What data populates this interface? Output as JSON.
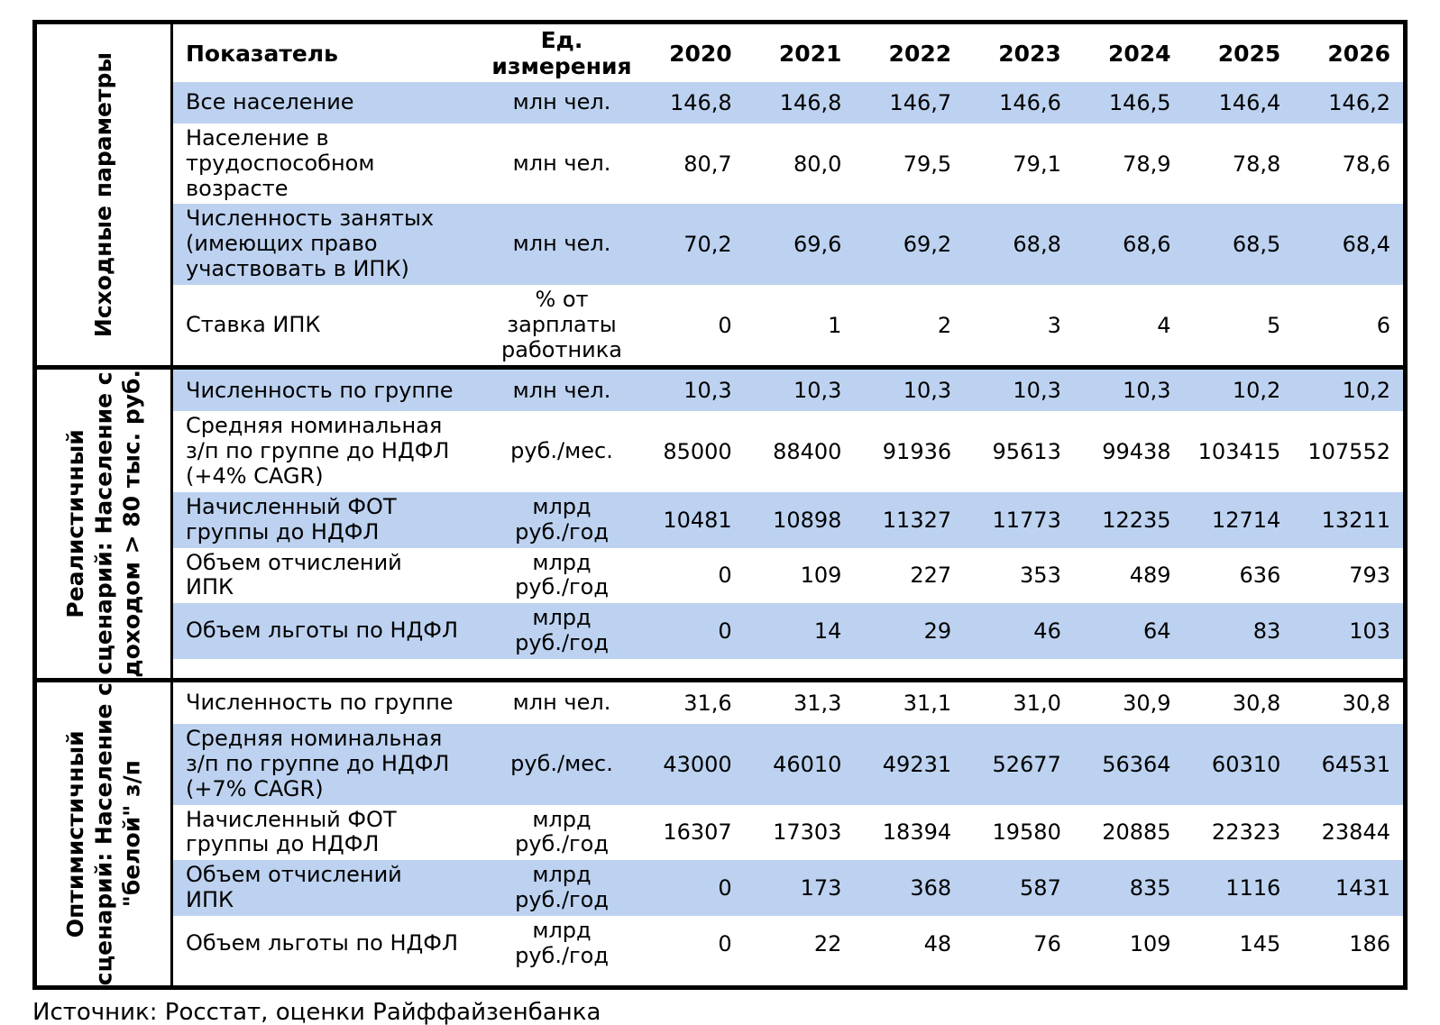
{
  "colors": {
    "row_highlight": "#bdd2f0",
    "border": "#000000",
    "background": "#ffffff"
  },
  "table": {
    "header": {
      "indicator_label": "Показатель",
      "unit_label_lines": [
        "Ед.",
        "измерения"
      ],
      "years": [
        "2020",
        "2021",
        "2022",
        "2023",
        "2024",
        "2025",
        "2026"
      ]
    },
    "sections": [
      {
        "label_lines": [
          "Исходные параметры"
        ],
        "rows": [
          {
            "name_lines": [
              "Все население"
            ],
            "unit_lines": [
              "млн чел."
            ],
            "values": [
              "146,8",
              "146,8",
              "146,7",
              "146,6",
              "146,5",
              "146,4",
              "146,2"
            ]
          },
          {
            "name_lines": [
              "Население в",
              "трудоспособном",
              "возрасте"
            ],
            "unit_lines": [
              "млн чел."
            ],
            "values": [
              "80,7",
              "80,0",
              "79,5",
              "79,1",
              "78,9",
              "78,8",
              "78,6"
            ]
          },
          {
            "name_lines": [
              "Численность занятых",
              "(имеющих право",
              "участвовать в ИПК)"
            ],
            "unit_lines": [
              "млн чел."
            ],
            "values": [
              "70,2",
              "69,6",
              "69,2",
              "68,8",
              "68,6",
              "68,5",
              "68,4"
            ]
          },
          {
            "name_lines": [
              "Ставка ИПК"
            ],
            "unit_lines": [
              "% от",
              "зарплаты",
              "работника"
            ],
            "values": [
              "0",
              "1",
              "2",
              "3",
              "4",
              "5",
              "6"
            ]
          }
        ]
      },
      {
        "label_lines": [
          "Реалистичный",
          "сценарий: Население с",
          "доходом > 80 тыс. руб."
        ],
        "rows": [
          {
            "name_lines": [
              "Численность по группе"
            ],
            "unit_lines": [
              "млн чел."
            ],
            "values": [
              "10,3",
              "10,3",
              "10,3",
              "10,3",
              "10,3",
              "10,2",
              "10,2"
            ]
          },
          {
            "name_lines": [
              "Средняя номинальная",
              "з/п по группе до НДФЛ",
              "(+4% CAGR)"
            ],
            "unit_lines": [
              "руб./мес."
            ],
            "values": [
              "85000",
              "88400",
              "91936",
              "95613",
              "99438",
              "103415",
              "107552"
            ]
          },
          {
            "name_lines": [
              "Начисленный ФОТ",
              "группы до НДФЛ"
            ],
            "unit_lines": [
              "млрд",
              "руб./год"
            ],
            "values": [
              "10481",
              "10898",
              "11327",
              "11773",
              "12235",
              "12714",
              "13211"
            ]
          },
          {
            "name_lines": [
              "Объем отчислений",
              "ИПК"
            ],
            "unit_lines": [
              "млрд",
              "руб./год"
            ],
            "values": [
              "0",
              "109",
              "227",
              "353",
              "489",
              "636",
              "793"
            ]
          },
          {
            "name_lines": [
              "Объем льготы по НДФЛ"
            ],
            "unit_lines": [
              "млрд",
              "руб./год"
            ],
            "values": [
              "0",
              "14",
              "29",
              "46",
              "64",
              "83",
              "103"
            ]
          }
        ]
      },
      {
        "label_lines": [
          "Оптимистичный",
          "сценарий: Население с",
          "\"белой\" з/п"
        ],
        "rows": [
          {
            "name_lines": [
              "Численность по группе"
            ],
            "unit_lines": [
              "млн чел."
            ],
            "values": [
              "31,6",
              "31,3",
              "31,1",
              "31,0",
              "30,9",
              "30,8",
              "30,8"
            ]
          },
          {
            "name_lines": [
              "Средняя номинальная",
              "з/п по группе до НДФЛ",
              "(+7% CAGR)"
            ],
            "unit_lines": [
              "руб./мес."
            ],
            "values": [
              "43000",
              "46010",
              "49231",
              "52677",
              "56364",
              "60310",
              "64531"
            ]
          },
          {
            "name_lines": [
              "Начисленный ФОТ",
              "группы до НДФЛ"
            ],
            "unit_lines": [
              "млрд",
              "руб./год"
            ],
            "values": [
              "16307",
              "17303",
              "18394",
              "19580",
              "20885",
              "22323",
              "23844"
            ]
          },
          {
            "name_lines": [
              "Объем отчислений",
              "ИПК"
            ],
            "unit_lines": [
              "млрд",
              "руб./год"
            ],
            "values": [
              "0",
              "173",
              "368",
              "587",
              "835",
              "1116",
              "1431"
            ]
          },
          {
            "name_lines": [
              "Объем льготы по НДФЛ"
            ],
            "unit_lines": [
              "млрд",
              "руб./год"
            ],
            "values": [
              "0",
              "22",
              "48",
              "76",
              "109",
              "145",
              "186"
            ]
          }
        ]
      }
    ]
  },
  "footer": {
    "source": "Источник: Росстат, оценки Райффайзенбанка"
  }
}
